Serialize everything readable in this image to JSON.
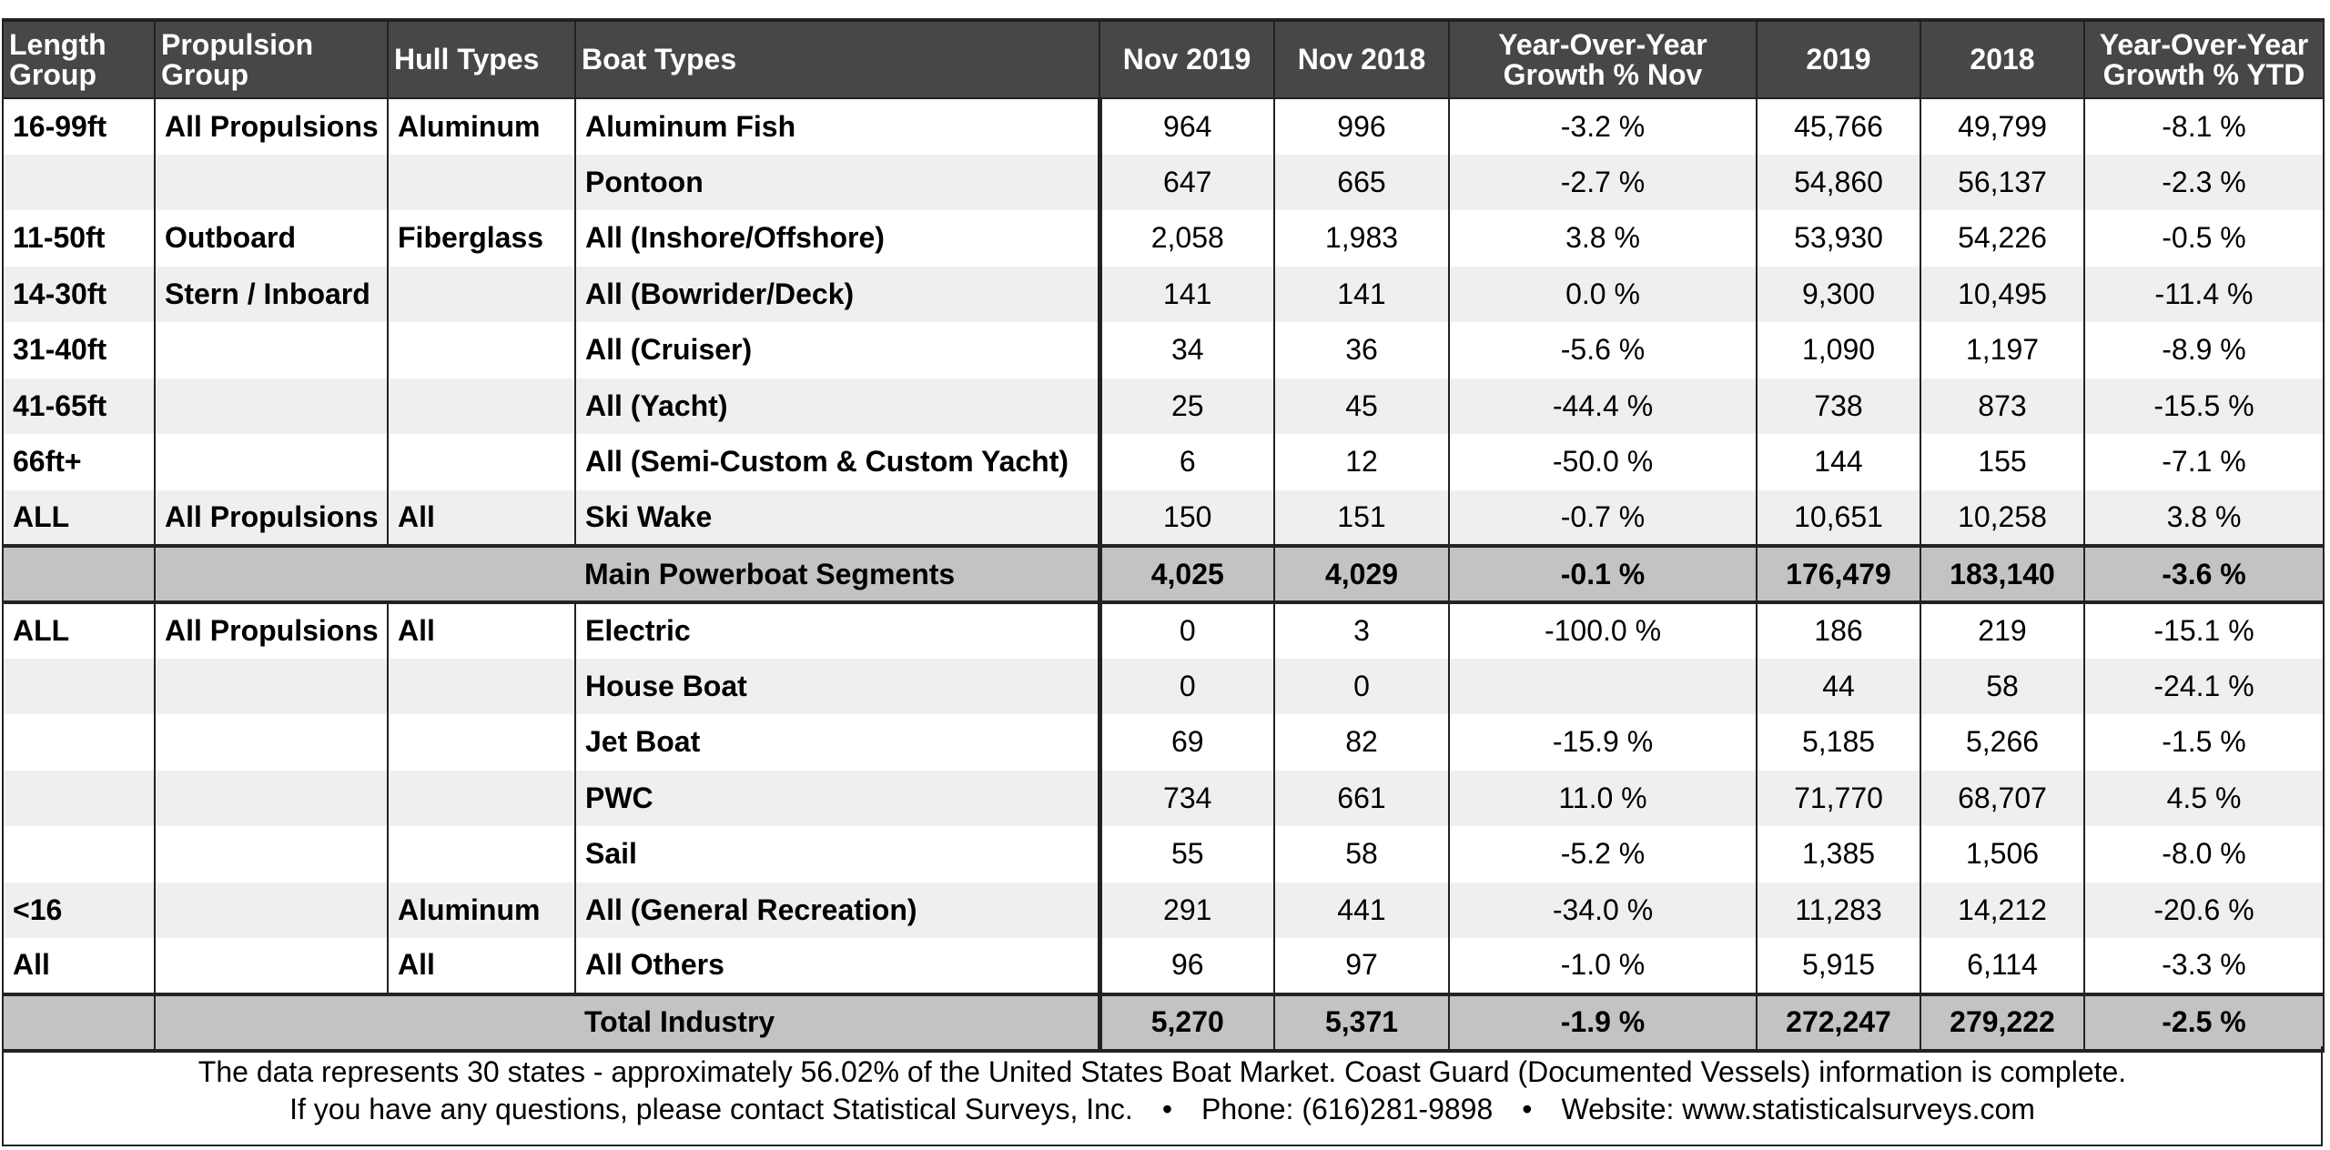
{
  "headers": {
    "length_group": "Length\nGroup",
    "propulsion_group": "Propulsion\nGroup",
    "hull_types": "Hull Types",
    "boat_types": "Boat Types",
    "nov_2019": "Nov 2019",
    "nov_2018": "Nov 2018",
    "yoy_nov": "Year-Over-Year\nGrowth % Nov",
    "y2019": "2019",
    "y2018": "2018",
    "yoy_ytd": "Year-Over-Year\nGrowth % YTD"
  },
  "section1": [
    {
      "length": "16-99ft",
      "propulsion": "All Propulsions",
      "hull": "Aluminum",
      "boat": "Aluminum Fish",
      "nov2019": "964",
      "nov2018": "996",
      "yoy_nov": "-3.2 %",
      "y2019": "45,766",
      "y2018": "49,799",
      "yoy_ytd": "-8.1 %"
    },
    {
      "length": "",
      "propulsion": "",
      "hull": "",
      "boat": "Pontoon",
      "nov2019": "647",
      "nov2018": "665",
      "yoy_nov": "-2.7 %",
      "y2019": "54,860",
      "y2018": "56,137",
      "yoy_ytd": "-2.3 %"
    },
    {
      "length": "11-50ft",
      "propulsion": "Outboard",
      "hull": "Fiberglass",
      "boat": "All (Inshore/Offshore)",
      "nov2019": "2,058",
      "nov2018": "1,983",
      "yoy_nov": "3.8 %",
      "y2019": "53,930",
      "y2018": "54,226",
      "yoy_ytd": "-0.5 %"
    },
    {
      "length": "14-30ft",
      "propulsion": "Stern / Inboard",
      "hull": "",
      "boat": "All (Bowrider/Deck)",
      "nov2019": "141",
      "nov2018": "141",
      "yoy_nov": "0.0 %",
      "y2019": "9,300",
      "y2018": "10,495",
      "yoy_ytd": "-11.4 %"
    },
    {
      "length": "31-40ft",
      "propulsion": "",
      "hull": "",
      "boat": "All (Cruiser)",
      "nov2019": "34",
      "nov2018": "36",
      "yoy_nov": "-5.6 %",
      "y2019": "1,090",
      "y2018": "1,197",
      "yoy_ytd": "-8.9 %"
    },
    {
      "length": "41-65ft",
      "propulsion": "",
      "hull": "",
      "boat": "All (Yacht)",
      "nov2019": "25",
      "nov2018": "45",
      "yoy_nov": "-44.4 %",
      "y2019": "738",
      "y2018": "873",
      "yoy_ytd": "-15.5 %"
    },
    {
      "length": "66ft+",
      "propulsion": "",
      "hull": "",
      "boat": "All (Semi-Custom & Custom Yacht)",
      "nov2019": "6",
      "nov2018": "12",
      "yoy_nov": "-50.0 %",
      "y2019": "144",
      "y2018": "155",
      "yoy_ytd": "-7.1 %"
    },
    {
      "length": "ALL",
      "propulsion": "All Propulsions",
      "hull": "All",
      "boat": "Ski Wake",
      "nov2019": "150",
      "nov2018": "151",
      "yoy_nov": "-0.7 %",
      "y2019": "10,651",
      "y2018": "10,258",
      "yoy_ytd": "3.8 %"
    }
  ],
  "subtotal": {
    "label": "Main Powerboat Segments",
    "nov2019": "4,025",
    "nov2018": "4,029",
    "yoy_nov": "-0.1 %",
    "y2019": "176,479",
    "y2018": "183,140",
    "yoy_ytd": "-3.6 %"
  },
  "section2": [
    {
      "length": "ALL",
      "propulsion": "All Propulsions",
      "hull": "All",
      "boat": "Electric",
      "nov2019": "0",
      "nov2018": "3",
      "yoy_nov": "-100.0 %",
      "y2019": "186",
      "y2018": "219",
      "yoy_ytd": "-15.1 %"
    },
    {
      "length": "",
      "propulsion": "",
      "hull": "",
      "boat": "House Boat",
      "nov2019": "0",
      "nov2018": "0",
      "yoy_nov": "",
      "y2019": "44",
      "y2018": "58",
      "yoy_ytd": "-24.1 %"
    },
    {
      "length": "",
      "propulsion": "",
      "hull": "",
      "boat": "Jet Boat",
      "nov2019": "69",
      "nov2018": "82",
      "yoy_nov": "-15.9 %",
      "y2019": "5,185",
      "y2018": "5,266",
      "yoy_ytd": "-1.5 %"
    },
    {
      "length": "",
      "propulsion": "",
      "hull": "",
      "boat": "PWC",
      "nov2019": "734",
      "nov2018": "661",
      "yoy_nov": "11.0 %",
      "y2019": "71,770",
      "y2018": "68,707",
      "yoy_ytd": "4.5 %"
    },
    {
      "length": "",
      "propulsion": "",
      "hull": "",
      "boat": "Sail",
      "nov2019": "55",
      "nov2018": "58",
      "yoy_nov": "-5.2 %",
      "y2019": "1,385",
      "y2018": "1,506",
      "yoy_ytd": "-8.0 %"
    },
    {
      "length": "<16",
      "propulsion": "",
      "hull": "Aluminum",
      "boat": "All (General Recreation)",
      "nov2019": "291",
      "nov2018": "441",
      "yoy_nov": "-34.0 %",
      "y2019": "11,283",
      "y2018": "14,212",
      "yoy_ytd": "-20.6 %"
    },
    {
      "length": "All",
      "propulsion": "",
      "hull": "All",
      "boat": "All Others",
      "nov2019": "96",
      "nov2018": "97",
      "yoy_nov": "-1.0 %",
      "y2019": "5,915",
      "y2018": "6,114",
      "yoy_ytd": "-3.3 %"
    }
  ],
  "total": {
    "label": "Total Industry",
    "nov2019": "5,270",
    "nov2018": "5,371",
    "yoy_nov": "-1.9 %",
    "y2019": "272,247",
    "y2018": "279,222",
    "yoy_ytd": "-2.5 %"
  },
  "footer": {
    "line1": "The data represents 30 states - approximately 56.02% of the United States Boat Market.  Coast Guard (Documented Vessels) information is complete.",
    "line2_part1": "If you have any questions, please contact Statistical Surveys, Inc.",
    "bullet": "•",
    "line2_part2": "Phone: (616)281-9898",
    "line2_part3": "Website: www.statisticalsurveys.com"
  }
}
